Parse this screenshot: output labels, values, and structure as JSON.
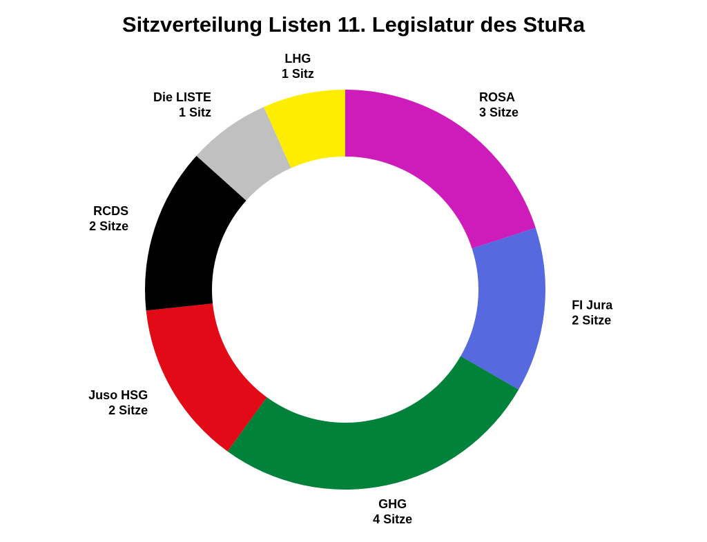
{
  "chart_data": {
    "type": "pie",
    "subtype": "donut",
    "title": "Sitzverteilung Listen 11. Legislatur des StuRa",
    "start": "12 o'clock",
    "direction": "clockwise",
    "slices": [
      {
        "name": "ROSA",
        "value": 3,
        "value_label": "3 Sitze",
        "color": "#CE1CBB"
      },
      {
        "name": "FI Jura",
        "value": 2,
        "value_label": "2 Sitze",
        "color": "#5669DF"
      },
      {
        "name": "GHG",
        "value": 4,
        "value_label": "4 Sitze",
        "color": "#00823A"
      },
      {
        "name": "Juso HSG",
        "value": 2,
        "value_label": "2 Sitze",
        "color": "#E30A17"
      },
      {
        "name": "RCDS",
        "value": 2,
        "value_label": "2 Sitze",
        "color": "#000000"
      },
      {
        "name": "Die LISTE",
        "value": 1,
        "value_label": "1 Sitz",
        "color": "#C0C0C0"
      },
      {
        "name": "LHG",
        "value": 1,
        "value_label": "1 Sitz",
        "color": "#FFED00"
      }
    ]
  }
}
